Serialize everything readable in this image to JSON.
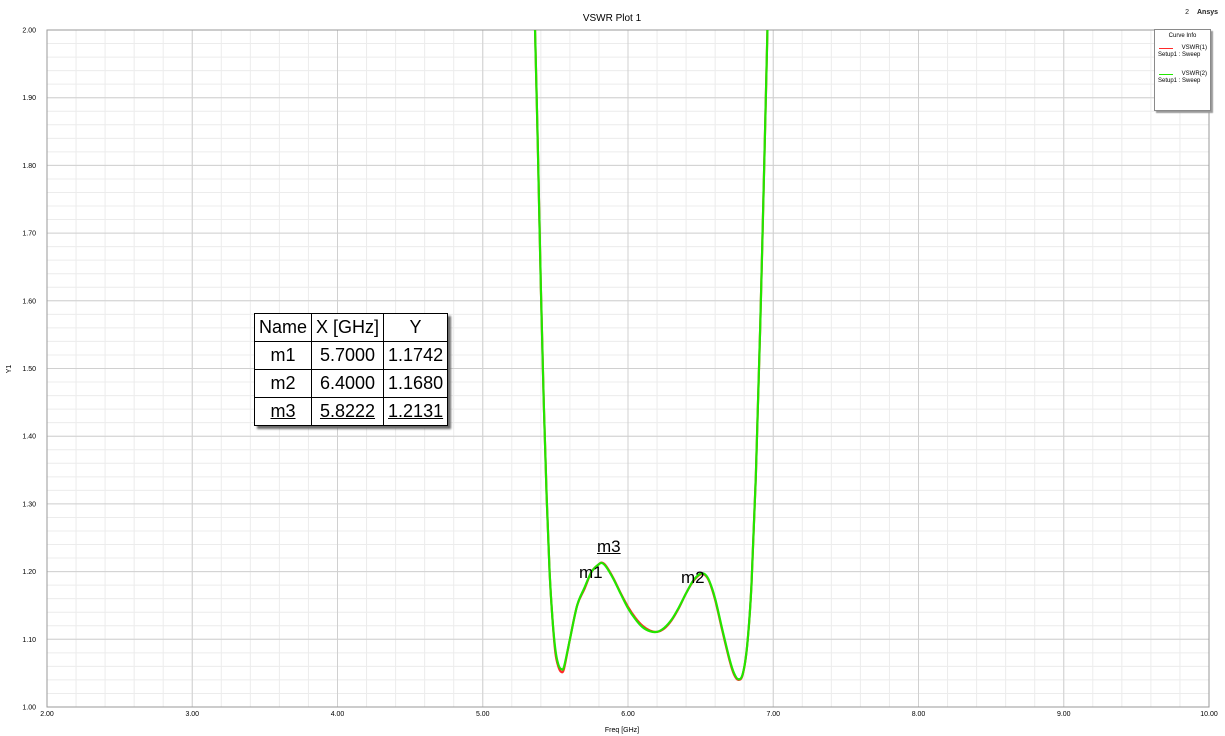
{
  "chart_data": {
    "type": "line",
    "title": "VSWR Plot 1",
    "xlabel": "Freq [GHz]",
    "ylabel": "Y1",
    "xlim": [
      2.0,
      10.0
    ],
    "ylim": [
      1.0,
      2.0
    ],
    "x_ticks": [
      "2.00",
      "3.00",
      "4.00",
      "5.00",
      "6.00",
      "7.00",
      "8.00",
      "9.00",
      "10.00"
    ],
    "y_ticks": [
      "1.00",
      "1.10",
      "1.20",
      "1.30",
      "1.40",
      "1.50",
      "1.60",
      "1.70",
      "1.80",
      "1.90",
      "2.00"
    ],
    "grid": true,
    "legend_position": "top-right",
    "legend_title": "Curve Info",
    "series": [
      {
        "name": "VSWR(1)",
        "subtitle": "Setup1 : Sweep",
        "color": "#ff2a2a",
        "x": [
          5.36,
          5.38,
          5.4,
          5.42,
          5.44,
          5.46,
          5.48,
          5.5,
          5.52,
          5.54,
          5.56,
          5.6,
          5.65,
          5.7,
          5.75,
          5.8,
          5.8222,
          5.85,
          5.9,
          5.95,
          6.0,
          6.05,
          6.1,
          6.15,
          6.2,
          6.25,
          6.3,
          6.35,
          6.4,
          6.45,
          6.5,
          6.53,
          6.56,
          6.6,
          6.65,
          6.7,
          6.73,
          6.76,
          6.79,
          6.82,
          6.85,
          6.88,
          6.91,
          6.94,
          6.96
        ],
        "y": [
          2.0,
          1.82,
          1.62,
          1.45,
          1.31,
          1.2,
          1.13,
          1.08,
          1.06,
          1.052,
          1.057,
          1.1,
          1.15,
          1.1742,
          1.2,
          1.211,
          1.2131,
          1.208,
          1.19,
          1.168,
          1.148,
          1.132,
          1.12,
          1.113,
          1.111,
          1.116,
          1.128,
          1.146,
          1.168,
          1.186,
          1.196,
          1.195,
          1.185,
          1.158,
          1.112,
          1.068,
          1.048,
          1.04,
          1.048,
          1.09,
          1.18,
          1.34,
          1.56,
          1.82,
          2.0
        ]
      },
      {
        "name": "VSWR(2)",
        "subtitle": "Setup1 : Sweep",
        "color": "#22e600",
        "x": [
          5.36,
          5.38,
          5.4,
          5.42,
          5.44,
          5.46,
          5.48,
          5.5,
          5.52,
          5.54,
          5.56,
          5.6,
          5.65,
          5.7,
          5.75,
          5.8,
          5.8222,
          5.85,
          5.9,
          5.95,
          6.0,
          6.05,
          6.1,
          6.15,
          6.2,
          6.25,
          6.3,
          6.35,
          6.4,
          6.45,
          6.5,
          6.53,
          6.56,
          6.6,
          6.65,
          6.7,
          6.73,
          6.76,
          6.79,
          6.82,
          6.85,
          6.88,
          6.91,
          6.94,
          6.96
        ],
        "y": [
          2.0,
          1.82,
          1.62,
          1.45,
          1.31,
          1.2,
          1.13,
          1.085,
          1.063,
          1.056,
          1.06,
          1.1,
          1.15,
          1.176,
          1.2,
          1.211,
          1.2125,
          1.207,
          1.189,
          1.167,
          1.146,
          1.13,
          1.118,
          1.112,
          1.111,
          1.117,
          1.129,
          1.147,
          1.168,
          1.187,
          1.197,
          1.196,
          1.186,
          1.16,
          1.114,
          1.07,
          1.05,
          1.041,
          1.049,
          1.09,
          1.18,
          1.34,
          1.56,
          1.82,
          2.0
        ]
      }
    ],
    "markers": [
      {
        "name": "m1",
        "x": 5.7,
        "y": 1.1742,
        "x_text": "5.7000",
        "y_text": "1.1742"
      },
      {
        "name": "m2",
        "x": 6.4,
        "y": 1.168,
        "x_text": "6.4000",
        "y_text": "1.1680"
      },
      {
        "name": "m3",
        "x": 5.8222,
        "y": 1.2131,
        "x_text": "5.8222",
        "y_text": "1.2131"
      }
    ],
    "marker_table_headers": [
      "Name",
      "X [GHz]",
      "Y"
    ]
  },
  "brand": {
    "number": "2",
    "name": "Ansys"
  },
  "colors": {
    "grid_major": "#d0d0d0",
    "grid_minor": "#ececec",
    "red_curve": "#ff2a2a",
    "green_curve": "#22e600"
  }
}
